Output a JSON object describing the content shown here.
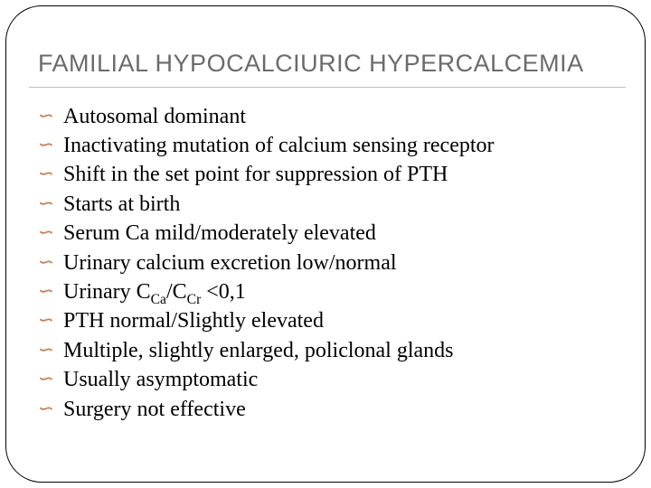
{
  "slide": {
    "title": "FAMILIAL HYPOCALCIURIC HYPERCALCEMIA",
    "title_color": "#6b6b6b",
    "title_fontsize": 27,
    "title_fontfamily": "Arial",
    "bullet_mark_color": "#c0815b",
    "frame_border_color": "#000000",
    "frame_radius": 40,
    "background_color": "#ffffff",
    "divider_color": "#bfbfbf",
    "body_fontfamily": "Times New Roman",
    "body_fontsize": 24,
    "bullets": [
      {
        "text": "Autosomal dominant"
      },
      {
        "text": "Inactivating mutation of calcium sensing receptor"
      },
      {
        "text": "Shift in the set point for suppression of PTH"
      },
      {
        "text": "Starts at birth"
      },
      {
        "text": "Serum Ca mild/moderately elevated"
      },
      {
        "text": "Urinary calcium excretion low/normal"
      },
      {
        "pre": "Urinary C",
        "sub1": "Ca",
        "mid": "/C",
        "sub2": "Cr",
        "post": " <0,1"
      },
      {
        "text": "PTH normal/Slightly elevated"
      },
      {
        "text": "Multiple, slightly enlarged, policlonal glands"
      },
      {
        "text": "Usually asymptomatic"
      },
      {
        "text": "Surgery not effective"
      }
    ]
  }
}
